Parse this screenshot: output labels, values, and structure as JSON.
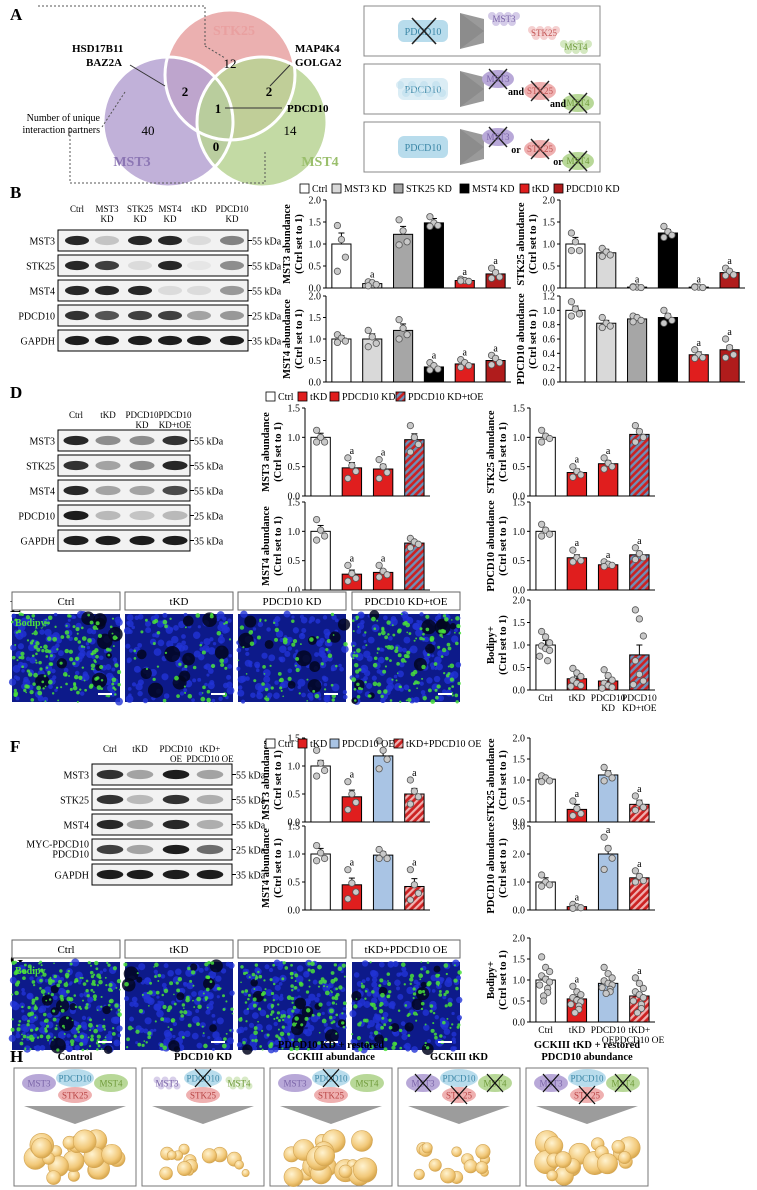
{
  "panels": {
    "A": "A",
    "B": "B",
    "C": "C",
    "D": "D",
    "E": "E",
    "F": "F",
    "G": "G",
    "H": "H"
  },
  "panel_a": {
    "stk25": "STK25",
    "mst3": "MST3",
    "mst4": "MST4",
    "counts": {
      "stk25_only": "12",
      "mst3_only": "40",
      "mst4_only": "14",
      "stk25_mst3": "2",
      "stk25_mst4": "2",
      "all": "1",
      "mst3_mst4": "0"
    },
    "left_partners": [
      "HSD17B11",
      "BAZ2A"
    ],
    "right_partners": [
      "MAP4K4",
      "GOLGA2"
    ],
    "center_partner": "PDCD10",
    "unique_label": [
      "Number of unique",
      "interaction partners"
    ]
  },
  "panel_c": {
    "rows": [
      {
        "left": "PDCD10",
        "items": [
          "MST3",
          "STK25",
          "MST4"
        ],
        "joiners": []
      },
      {
        "left": "PDCD10",
        "items": [
          "MST3",
          "STK25",
          "MST4"
        ],
        "joiners": [
          "and",
          "and"
        ]
      },
      {
        "left": "PDCD10",
        "items": [
          "MST3",
          "STK25",
          "MST4"
        ],
        "joiners": [
          "or",
          "or"
        ]
      }
    ]
  },
  "colors": {
    "ctrl": "#ffffff",
    "mst3kd": "#d9d9d9",
    "stk25kd": "#a6a6a6",
    "mst4kd": "#000000",
    "tkd": "#e01e1e",
    "pdcd10kd": "#b01c1c",
    "oe": "#a9c4e4",
    "dot": "#c8c8c8",
    "mst3": "#b8a8d8",
    "stk25": "#efb0b0",
    "mst4": "#b8d898",
    "pdcd10": "#b8dcec"
  },
  "legends": {
    "B": [
      "Ctrl",
      "MST3 KD",
      "STK25 KD",
      "MST4 KD",
      "tKD",
      "PDCD10 KD"
    ],
    "D": [
      "Ctrl",
      "tKD",
      "PDCD10 KD",
      "PDCD10 KD+tOE"
    ],
    "F": [
      "Ctrl",
      "tKD",
      "PDCD10 OE",
      "tKD+PDCD10 OE"
    ]
  },
  "blots": {
    "B": {
      "lanes": [
        "Ctrl",
        "MST3\nKD",
        "STK25\nKD",
        "MST4\nKD",
        "tKD",
        "PDCD10\nKD"
      ],
      "rows": [
        "MST3",
        "STK25",
        "MST4",
        "PDCD10",
        "GAPDH"
      ],
      "sizes": [
        "55 kDa",
        "55 kDa",
        "55 kDa",
        "25 kDa",
        "35 kDa"
      ]
    },
    "D": {
      "lanes": [
        "Ctrl",
        "tKD",
        "PDCD10\nKD",
        "PDCD10\nKD+tOE"
      ],
      "rows": [
        "MST3",
        "STK25",
        "MST4",
        "PDCD10",
        "GAPDH"
      ],
      "sizes": [
        "55 kDa",
        "55 kDa",
        "55 kDa",
        "25 kDa",
        "35 kDa"
      ]
    },
    "F": {
      "lanes": [
        "Ctrl",
        "tKD",
        "PDCD10\nOE",
        "tKD+\nPDCD10 OE"
      ],
      "rows": [
        "MST3",
        "STK25",
        "MST4",
        "MYC-PDCD10\nPDCD10",
        "GAPDH"
      ],
      "sizes": [
        "55 kDa",
        "55 kDa",
        "55 kDa",
        "25 kDa",
        "35 kDa"
      ]
    }
  },
  "micro": {
    "E": {
      "labels": [
        "Ctrl",
        "tKD",
        "PDCD10 KD",
        "PDCD10 KD+tOE"
      ],
      "stain": "Bodipy"
    },
    "G": {
      "labels": [
        "Ctrl",
        "tKD",
        "PDCD10 OE",
        "tKD+PDCD10 OE"
      ],
      "stain": "Bodipy"
    }
  },
  "chart_data": [
    {
      "id": "B-MST3",
      "type": "bar",
      "ylabel": "MST3 abundance\n(Ctrl set to 1)",
      "ylim": [
        0,
        2.0
      ],
      "yticks": [
        0,
        0.5,
        1.0,
        1.5,
        2.0
      ],
      "categories": [
        "Ctrl",
        "MST3 KD",
        "STK25 KD",
        "MST4 KD",
        "tKD",
        "PDCD10 KD"
      ],
      "values": [
        1.0,
        0.1,
        1.22,
        1.48,
        0.17,
        0.32
      ],
      "errors": [
        0.25,
        0.05,
        0.18,
        0.1,
        0.04,
        0.08
      ],
      "sig": [
        "",
        "a",
        "",
        "",
        "a",
        "a"
      ],
      "points": [
        [
          1.42,
          1.1,
          0.7,
          0.38
        ],
        [
          0.14,
          0.12,
          0.08,
          0.05
        ],
        [
          1.55,
          1.3,
          1.05,
          0.98
        ],
        [
          1.62,
          1.48,
          1.42,
          1.4
        ],
        [
          0.2,
          0.17,
          0.15,
          0.16
        ],
        [
          0.45,
          0.35,
          0.25,
          0.22
        ]
      ]
    },
    {
      "id": "B-STK25",
      "type": "bar",
      "ylabel": "STK25 abundance\n(Ctrl set to 1)",
      "ylim": [
        0,
        2.0
      ],
      "yticks": [
        0,
        0.5,
        1.0,
        1.5,
        2.0
      ],
      "categories": [
        "Ctrl",
        "MST3 KD",
        "STK25 KD",
        "MST4 KD",
        "tKD",
        "PDCD10 KD"
      ],
      "values": [
        1.0,
        0.8,
        0.02,
        1.25,
        0.02,
        0.35
      ],
      "errors": [
        0.15,
        0.08,
        0.01,
        0.08,
        0.01,
        0.06
      ],
      "sig": [
        "",
        "",
        "a",
        "",
        "a",
        "a"
      ],
      "points": [
        [
          1.25,
          1.05,
          0.85,
          0.85
        ],
        [
          0.9,
          0.82,
          0.75,
          0.72
        ],
        [
          0.03,
          0.02,
          0.01,
          0.02
        ],
        [
          1.4,
          1.28,
          1.2,
          1.15
        ],
        [
          0.03,
          0.02,
          0.01,
          0.02
        ],
        [
          0.45,
          0.38,
          0.3,
          0.28
        ]
      ]
    },
    {
      "id": "B-MST4",
      "type": "bar",
      "ylabel": "MST4 abundance\n(Ctrl set to 1)",
      "ylim": [
        0,
        2.0
      ],
      "yticks": [
        0,
        0.5,
        1.0,
        1.5,
        2.0
      ],
      "categories": [
        "Ctrl",
        "MST3 KD",
        "STK25 KD",
        "MST4 KD",
        "tKD",
        "PDCD10 KD"
      ],
      "values": [
        1.0,
        1.0,
        1.2,
        0.35,
        0.42,
        0.5
      ],
      "errors": [
        0.08,
        0.12,
        0.15,
        0.06,
        0.07,
        0.08
      ],
      "sig": [
        "",
        "",
        "",
        "a",
        "a",
        "a"
      ],
      "points": [
        [
          1.1,
          1.02,
          0.95,
          0.92
        ],
        [
          1.2,
          1.05,
          0.9,
          0.82
        ],
        [
          1.45,
          1.25,
          1.1,
          1.0
        ],
        [
          0.45,
          0.38,
          0.3,
          0.28
        ],
        [
          0.52,
          0.45,
          0.38,
          0.34
        ],
        [
          0.62,
          0.55,
          0.45,
          0.4
        ]
      ]
    },
    {
      "id": "B-PDCD10",
      "type": "bar",
      "ylabel": "PDCD10 abundance\n(Ctrl set to 1)",
      "ylim": [
        0,
        1.2
      ],
      "yticks": [
        0,
        0.2,
        0.4,
        0.6,
        0.8,
        1.0,
        1.2
      ],
      "categories": [
        "Ctrl",
        "MST3 KD",
        "STK25 KD",
        "MST4 KD",
        "tKD",
        "PDCD10 KD"
      ],
      "values": [
        1.0,
        0.82,
        0.88,
        0.9,
        0.38,
        0.45
      ],
      "errors": [
        0.06,
        0.04,
        0.03,
        0.05,
        0.04,
        0.06
      ],
      "sig": [
        "",
        "",
        "",
        "",
        "a",
        "a"
      ],
      "points": [
        [
          1.12,
          1.02,
          0.95,
          0.92
        ],
        [
          0.9,
          0.82,
          0.78,
          0.76
        ],
        [
          0.92,
          0.9,
          0.86,
          0.84
        ],
        [
          1.0,
          0.92,
          0.86,
          0.82
        ],
        [
          0.45,
          0.38,
          0.34,
          0.33
        ],
        [
          0.6,
          0.48,
          0.38,
          0.34
        ]
      ]
    },
    {
      "id": "D-MST3",
      "type": "bar",
      "ylabel": "MST3 abundance\n(Ctrl set to 1)",
      "ylim": [
        0,
        1.5
      ],
      "yticks": [
        0,
        0.5,
        1.0,
        1.5
      ],
      "categories": [
        "Ctrl",
        "tKD",
        "PDCD10 KD",
        "PDCD10 KD+tOE"
      ],
      "values": [
        1.0,
        0.48,
        0.46,
        0.96
      ],
      "errors": [
        0.07,
        0.09,
        0.08,
        0.1
      ],
      "sig": [
        "",
        "a",
        "a",
        ""
      ],
      "points": [
        [
          1.12,
          1.0,
          0.92,
          0.92
        ],
        [
          0.65,
          0.52,
          0.42,
          0.3
        ],
        [
          0.62,
          0.5,
          0.4,
          0.3
        ],
        [
          1.2,
          1.0,
          0.88,
          0.75
        ]
      ]
    },
    {
      "id": "D-STK25",
      "type": "bar",
      "ylabel": "STK25 abundance\n(Ctrl set to 1)",
      "ylim": [
        0,
        1.5
      ],
      "yticks": [
        0,
        0.5,
        1.0,
        1.5
      ],
      "categories": [
        "Ctrl",
        "tKD",
        "PDCD10 KD",
        "PDCD10 KD+tOE"
      ],
      "values": [
        1.0,
        0.4,
        0.55,
        1.05
      ],
      "errors": [
        0.05,
        0.06,
        0.05,
        0.08
      ],
      "sig": [
        "",
        "a",
        "a",
        ""
      ],
      "points": [
        [
          1.12,
          1.02,
          0.98,
          0.92
        ],
        [
          0.5,
          0.42,
          0.36,
          0.32
        ],
        [
          0.65,
          0.56,
          0.5,
          0.46
        ],
        [
          1.2,
          1.1,
          1.0,
          0.92
        ]
      ]
    },
    {
      "id": "D-MST4",
      "type": "bar",
      "ylabel": "MST4 abundance\n(Ctrl set to 1)",
      "ylim": [
        0,
        1.5
      ],
      "yticks": [
        0,
        0.5,
        1.0,
        1.5
      ],
      "categories": [
        "Ctrl",
        "tKD",
        "PDCD10 KD",
        "PDCD10 KD+tOE"
      ],
      "values": [
        1.0,
        0.27,
        0.3,
        0.8
      ],
      "errors": [
        0.1,
        0.07,
        0.05,
        0.04
      ],
      "sig": [
        "",
        "a",
        "a",
        ""
      ],
      "points": [
        [
          1.2,
          1.02,
          0.92,
          0.85
        ],
        [
          0.42,
          0.28,
          0.2,
          0.15
        ],
        [
          0.42,
          0.32,
          0.26,
          0.22
        ],
        [
          0.88,
          0.82,
          0.78,
          0.72
        ]
      ]
    },
    {
      "id": "D-PDCD10",
      "type": "bar",
      "ylabel": "PDCD10 abundance\n(Ctrl set to 1)",
      "ylim": [
        0,
        1.5
      ],
      "yticks": [
        0,
        0.5,
        1.0,
        1.5
      ],
      "categories": [
        "Ctrl",
        "tKD",
        "PDCD10 KD",
        "PDCD10 KD+tOE"
      ],
      "values": [
        1.0,
        0.55,
        0.43,
        0.6
      ],
      "errors": [
        0.05,
        0.05,
        0.03,
        0.05
      ],
      "sig": [
        "",
        "a",
        "a",
        "a"
      ],
      "points": [
        [
          1.12,
          1.02,
          0.95,
          0.92
        ],
        [
          0.68,
          0.55,
          0.5,
          0.48
        ],
        [
          0.48,
          0.44,
          0.42,
          0.4
        ],
        [
          0.72,
          0.62,
          0.55,
          0.52
        ]
      ]
    },
    {
      "id": "E-Bodipy",
      "type": "bar",
      "ylabel": "Bodipy+\n(Ctrl set to 1)",
      "ylim": [
        0,
        2.0
      ],
      "yticks": [
        0,
        0.5,
        1.0,
        1.5,
        2.0
      ],
      "categories": [
        "Ctrl",
        "tKD",
        "PDCD10\nKD",
        "PDCD10\nKD+tOE"
      ],
      "values": [
        1.0,
        0.25,
        0.2,
        0.78
      ],
      "errors": [
        0.1,
        0.06,
        0.06,
        0.22
      ],
      "sig": [
        "",
        "",
        "",
        ""
      ],
      "points": [
        [
          1.3,
          1.18,
          1.05,
          0.98,
          0.92,
          0.88,
          0.75,
          0.65
        ],
        [
          0.48,
          0.38,
          0.3,
          0.22,
          0.15,
          0.1,
          0.08
        ],
        [
          0.45,
          0.32,
          0.22,
          0.15,
          0.1,
          0.06,
          0.04
        ],
        [
          1.78,
          1.58,
          1.2,
          0.65,
          0.35,
          0.2,
          0.12
        ]
      ]
    },
    {
      "id": "F-MST3",
      "type": "bar",
      "ylabel": "MST3 abundance\n(Ctrl set to 1)",
      "ylim": [
        0,
        1.5
      ],
      "yticks": [
        0,
        0.5,
        1.0,
        1.5
      ],
      "categories": [
        "Ctrl",
        "tKD",
        "PDCD10 OE",
        "tKD+PDCD10 OE"
      ],
      "values": [
        1.0,
        0.45,
        1.18,
        0.5
      ],
      "errors": [
        0.1,
        0.12,
        0.12,
        0.1
      ],
      "sig": [
        "",
        "a",
        "",
        "a"
      ],
      "points": [
        [
          1.28,
          1.05,
          0.92,
          0.82
        ],
        [
          0.72,
          0.5,
          0.35,
          0.22
        ],
        [
          1.45,
          1.28,
          1.12,
          0.95
        ],
        [
          0.75,
          0.55,
          0.45,
          0.32
        ]
      ]
    },
    {
      "id": "F-STK25",
      "type": "bar",
      "ylabel": "STK25 abundance\n(Ctrl set to 1)",
      "ylim": [
        0,
        2.0
      ],
      "yticks": [
        0,
        0.5,
        1.0,
        1.5,
        2.0
      ],
      "categories": [
        "Ctrl",
        "tKD",
        "PDCD10 OE",
        "tKD+PDCD10 OE"
      ],
      "values": [
        1.02,
        0.3,
        1.12,
        0.42
      ],
      "errors": [
        0.05,
        0.12,
        0.1,
        0.1
      ],
      "sig": [
        "",
        "a",
        "",
        "a"
      ],
      "points": [
        [
          1.1,
          1.05,
          0.98,
          0.96
        ],
        [
          0.5,
          0.32,
          0.2,
          0.15
        ],
        [
          1.3,
          1.15,
          1.05,
          0.98
        ],
        [
          0.62,
          0.45,
          0.35,
          0.28
        ]
      ]
    },
    {
      "id": "F-MST4",
      "type": "bar",
      "ylabel": "MST4 abundance\n(Ctrl set to 1)",
      "ylim": [
        0,
        1.5
      ],
      "yticks": [
        0,
        0.5,
        1.0,
        1.5
      ],
      "categories": [
        "Ctrl",
        "tKD",
        "PDCD10 OE",
        "tKD+PDCD10 OE"
      ],
      "values": [
        1.0,
        0.45,
        0.98,
        0.42
      ],
      "errors": [
        0.1,
        0.12,
        0.06,
        0.14
      ],
      "sig": [
        "",
        "a",
        "",
        "a"
      ],
      "points": [
        [
          1.15,
          1.02,
          0.92,
          0.88
        ],
        [
          0.72,
          0.48,
          0.32,
          0.2
        ],
        [
          1.08,
          1.0,
          0.92,
          0.92
        ],
        [
          0.72,
          0.45,
          0.3,
          0.18
        ]
      ]
    },
    {
      "id": "F-PDCD10",
      "type": "bar",
      "ylabel": "PDCD10 abundance\n(Ctrl set to 1)",
      "ylim": [
        0,
        3.0
      ],
      "yticks": [
        0,
        1.0,
        2.0,
        3.0
      ],
      "categories": [
        "Ctrl",
        "tKD",
        "PDCD10 OE",
        "tKD+PDCD10 OE"
      ],
      "values": [
        1.0,
        0.12,
        2.0,
        1.15
      ],
      "errors": [
        0.15,
        0.05,
        0.28,
        0.12
      ],
      "sig": [
        "",
        "a",
        "a",
        "a"
      ],
      "points": [
        [
          1.25,
          1.0,
          0.9,
          0.85
        ],
        [
          0.2,
          0.12,
          0.08,
          0.06
        ],
        [
          2.6,
          2.2,
          1.85,
          1.45
        ],
        [
          1.4,
          1.2,
          1.05,
          1.0
        ]
      ]
    },
    {
      "id": "G-Bodipy",
      "type": "bar",
      "ylabel": "Bodipy+\n(Ctrl set to 1)",
      "ylim": [
        0,
        2.0
      ],
      "yticks": [
        0,
        0.5,
        1.0,
        1.5,
        2.0
      ],
      "categories": [
        "Ctrl",
        "tKD",
        "PDCD10\nOE",
        "tKD+\nPDCD10 OE"
      ],
      "values": [
        1.0,
        0.55,
        0.92,
        0.62
      ],
      "errors": [
        0.08,
        0.06,
        0.05,
        0.07
      ],
      "sig": [
        "",
        "a",
        "",
        "a"
      ],
      "points": [
        [
          1.55,
          1.3,
          1.2,
          1.1,
          1.02,
          0.95,
          0.88,
          0.8,
          0.7,
          0.62,
          0.5
        ],
        [
          0.85,
          0.72,
          0.65,
          0.58,
          0.52,
          0.48,
          0.42,
          0.38,
          0.3,
          0.22
        ],
        [
          1.3,
          1.15,
          1.05,
          0.98,
          0.92,
          0.88,
          0.82,
          0.78,
          0.72,
          0.68
        ],
        [
          1.05,
          0.92,
          0.8,
          0.72,
          0.65,
          0.58,
          0.5,
          0.42,
          0.32,
          0.22
        ]
      ]
    }
  ],
  "panel_h": {
    "titles": [
      "Control",
      "PDCD10 KD",
      "PDCD10 KD + restored\nGCKIII abundance",
      "GCKIII tKD",
      "GCKIII tKD + restored\nPDCD10 abundance"
    ],
    "labels": {
      "mst3": "MST3",
      "pdcd10": "PDCD10",
      "mst4": "MST4",
      "stk25": "STK25"
    }
  }
}
